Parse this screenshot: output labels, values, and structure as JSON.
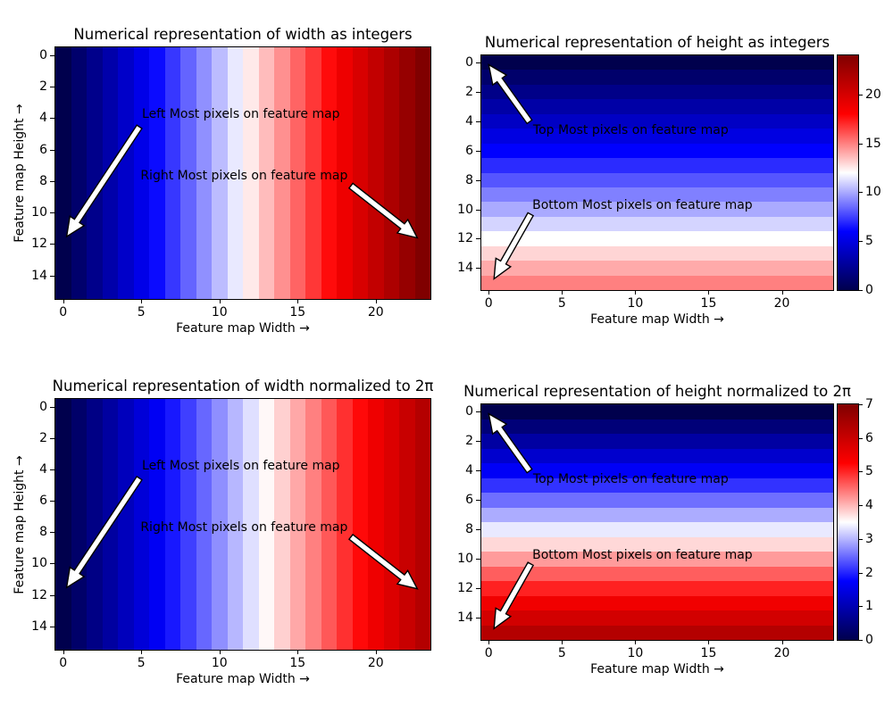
{
  "figure": {
    "background": "#ffffff",
    "text_color": "#000000",
    "colormap": {
      "name": "seismic",
      "anchors": [
        [
          0.0,
          [
            0,
            0,
            77
          ]
        ],
        [
          0.25,
          [
            0,
            0,
            255
          ]
        ],
        [
          0.5,
          [
            255,
            255,
            255
          ]
        ],
        [
          0.75,
          [
            255,
            0,
            0
          ]
        ],
        [
          1.0,
          [
            128,
            0,
            0
          ]
        ]
      ]
    }
  },
  "chart_data": [
    {
      "type": "heatmap",
      "title": "Numerical representation of width as integers",
      "xlabel": "Feature map Width →",
      "ylabel": "Feature map Height →",
      "orientation": "columns",
      "n_cols": 24,
      "n_rows": 16,
      "values": [
        0,
        1,
        2,
        3,
        4,
        5,
        6,
        7,
        8,
        9,
        10,
        11,
        12,
        13,
        14,
        15,
        16,
        17,
        18,
        19,
        20,
        21,
        22,
        23
      ],
      "vmin": 0,
      "vmax": 23,
      "xticks": [
        0,
        5,
        10,
        15,
        20
      ],
      "yticks": [
        0,
        2,
        4,
        6,
        8,
        10,
        12,
        14
      ],
      "colorbar": null,
      "annotations": [
        {
          "text": "Left Most pixels on feature map",
          "text_fx": 0.231,
          "text_fy": 0.266,
          "arrow_start": [
            0.224,
            0.316
          ],
          "arrow_end": [
            0.03,
            0.752
          ]
        },
        {
          "text": "Right Most pixels on feature map",
          "text_fx": 0.227,
          "text_fy": 0.512,
          "arrow_start": [
            0.788,
            0.55
          ],
          "arrow_end": [
            0.965,
            0.757
          ]
        }
      ]
    },
    {
      "type": "heatmap",
      "title": "Numerical representation of height as integers",
      "xlabel": "Feature map Width →",
      "ylabel": null,
      "orientation": "rows",
      "n_cols": 24,
      "n_rows": 16,
      "values": [
        0,
        1,
        2,
        3,
        4,
        5,
        6,
        7,
        8,
        9,
        10,
        11,
        12,
        13,
        14,
        15
      ],
      "vmin": 0,
      "vmax": 24,
      "xticks": [
        0,
        5,
        10,
        15,
        20
      ],
      "yticks": [
        0,
        2,
        4,
        6,
        8,
        10,
        12,
        14
      ],
      "colorbar": {
        "vmin": 0,
        "vmax": 24,
        "ticks": [
          0,
          5,
          10,
          15,
          20
        ]
      },
      "annotations": [
        {
          "text": "Top Most pixels on feature map",
          "text_fx": 0.147,
          "text_fy": 0.318,
          "arrow_start": [
            0.137,
            0.283
          ],
          "arrow_end": [
            0.021,
            0.04
          ]
        },
        {
          "text": "Bottom Most pixels on feature map",
          "text_fx": 0.145,
          "text_fy": 0.639,
          "arrow_start": [
            0.14,
            0.677
          ],
          "arrow_end": [
            0.036,
            0.952
          ]
        }
      ]
    },
    {
      "type": "heatmap",
      "title": "Numerical representation of width normalized to 2π",
      "xlabel": "Feature map Width →",
      "ylabel": "Feature map Height →",
      "orientation": "columns",
      "n_cols": 24,
      "n_rows": 16,
      "values": [
        0,
        0.2732,
        0.5464,
        0.8195,
        1.0927,
        1.3659,
        1.6391,
        1.9123,
        2.1855,
        2.4586,
        2.7318,
        3.005,
        3.2782,
        3.5514,
        3.8245,
        4.0977,
        4.3709,
        4.6441,
        4.9173,
        5.1905,
        5.4636,
        5.7368,
        6.01,
        6.2832
      ],
      "vmin": 0,
      "vmax": 7,
      "xticks": [
        0,
        5,
        10,
        15,
        20
      ],
      "yticks": [
        0,
        2,
        4,
        6,
        8,
        10,
        12,
        14
      ],
      "colorbar": null,
      "annotations": [
        {
          "text": "Left Most pixels on feature map",
          "text_fx": 0.231,
          "text_fy": 0.266,
          "arrow_start": [
            0.224,
            0.316
          ],
          "arrow_end": [
            0.03,
            0.752
          ]
        },
        {
          "text": "Right Most pixels on feature map",
          "text_fx": 0.227,
          "text_fy": 0.512,
          "arrow_start": [
            0.788,
            0.55
          ],
          "arrow_end": [
            0.965,
            0.757
          ]
        }
      ]
    },
    {
      "type": "heatmap",
      "title": "Numerical representation of height normalized to 2π",
      "xlabel": "Feature map Width →",
      "ylabel": null,
      "orientation": "rows",
      "n_cols": 24,
      "n_rows": 16,
      "values": [
        0,
        0.4189,
        0.8378,
        1.2566,
        1.6755,
        2.0944,
        2.5133,
        2.9322,
        3.351,
        3.7699,
        4.1888,
        4.6077,
        5.0265,
        5.4454,
        5.8643,
        6.2832
      ],
      "vmin": 0,
      "vmax": 7,
      "xticks": [
        0,
        5,
        10,
        15,
        20
      ],
      "yticks": [
        0,
        2,
        4,
        6,
        8,
        10,
        12,
        14
      ],
      "colorbar": {
        "vmin": 0,
        "vmax": 7,
        "ticks": [
          0,
          1,
          2,
          3,
          4,
          5,
          6,
          7
        ]
      },
      "annotations": [
        {
          "text": "Top Most pixels on feature map",
          "text_fx": 0.147,
          "text_fy": 0.318,
          "arrow_start": [
            0.137,
            0.283
          ],
          "arrow_end": [
            0.021,
            0.04
          ]
        },
        {
          "text": "Bottom Most pixels on feature map",
          "text_fx": 0.145,
          "text_fy": 0.639,
          "arrow_start": [
            0.14,
            0.677
          ],
          "arrow_end": [
            0.036,
            0.952
          ]
        }
      ]
    }
  ]
}
